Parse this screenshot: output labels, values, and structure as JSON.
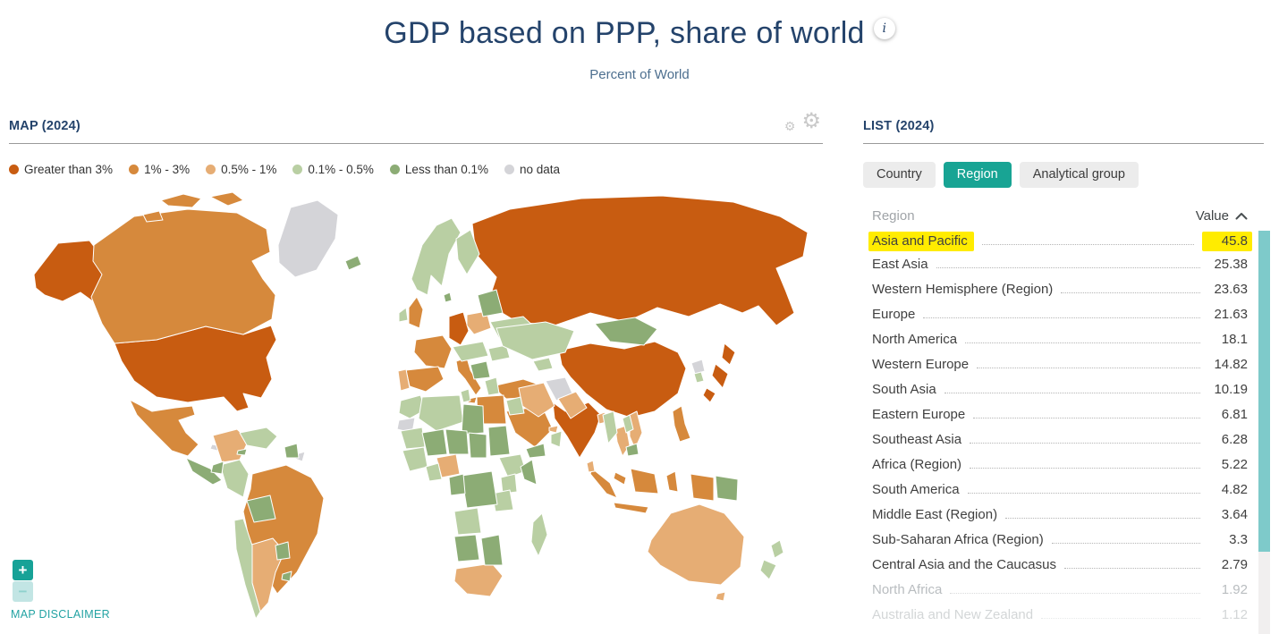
{
  "header": {
    "title": "GDP based on PPP, share of world",
    "subtitle": "Percent of World",
    "info_icon": "i"
  },
  "map_panel": {
    "title": "MAP (2024)",
    "legend": [
      {
        "label": "Greater than 3%",
        "category": "gt3"
      },
      {
        "label": "1% - 3%",
        "category": "p1_3"
      },
      {
        "label": "0.5% - 1%",
        "category": "p05_1"
      },
      {
        "label": "0.1% - 0.5%",
        "category": "p01_05"
      },
      {
        "label": "Less than 0.1%",
        "category": "lt01"
      },
      {
        "label": "no data",
        "category": "nodata"
      }
    ],
    "zoom_in_label": "+",
    "zoom_out_label": "−",
    "disclaimer": "MAP DISCLAIMER"
  },
  "map": {
    "palette": {
      "gt3": "#C85C11",
      "p1_3": "#D6893C",
      "p05_1": "#E6AD74",
      "p01_05": "#B9CFA3",
      "lt01": "#8CAC75",
      "nodata": "#D4D4D8"
    },
    "countries": {
      "greenland": "nodata",
      "cuba": "nodata",
      "western-sahara": "nodata",
      "syria": "nodata",
      "afghanistan": "nodata",
      "north-korea": "nodata",
      "french-guiana": "nodata",
      "alaska": "gt3",
      "usa": "gt3",
      "russia": "gt3",
      "china": "gt3",
      "india": "gt3",
      "japan": "gt3",
      "germany": "gt3",
      "canada": "p1_3",
      "canadian-islands": "p1_3",
      "mexico": "p1_3",
      "uk": "p1_3",
      "france": "p1_3",
      "spain": "p1_3",
      "italy": "p1_3",
      "turkey": "p1_3",
      "egypt": "p1_3",
      "saudi-arabia": "p1_3",
      "brazil": "p1_3",
      "indonesia": "p1_3",
      "philippines": "p1_3",
      "malaysia": "p1_3",
      "colombia": "p05_1",
      "argentina": "p05_1",
      "poland": "p05_1",
      "portugal": "p05_1",
      "nigeria": "p05_1",
      "south-africa": "p05_1",
      "australia": "p05_1",
      "iran": "p05_1",
      "pakistan": "p05_1",
      "bangladesh": "p05_1",
      "sri-lanka": "p05_1",
      "thailand": "p05_1",
      "vietnam": "p05_1",
      "uae": "p05_1",
      "ireland": "p01_05",
      "scandinavia": "p01_05",
      "finland": "p01_05",
      "ukraine": "p01_05",
      "romania": "p01_05",
      "greece": "p01_05",
      "central-europe": "p01_05",
      "kazakhstan": "p01_05",
      "uzbekistan": "p01_05",
      "morocco": "p01_05",
      "algeria": "p01_05",
      "tunisia": "p01_05",
      "mauritania": "p01_05",
      "ethiopia": "p01_05",
      "kenya": "p01_05",
      "tanzania": "p01_05",
      "angola": "p01_05",
      "madagascar": "p01_05",
      "new-zealand": "p01_05",
      "chile": "p01_05",
      "peru": "p01_05",
      "west-africa": "p01_05",
      "ghana": "p01_05",
      "south-korea": "p01_05",
      "venezuela": "p01_05",
      "myanmar": "p01_05",
      "laos": "p01_05",
      "iraq": "p01_05",
      "oman": "p01_05",
      "iceland": "lt01",
      "mongolia": "lt01",
      "libya": "lt01",
      "mali": "lt01",
      "niger": "lt01",
      "chad": "lt01",
      "sudan": "lt01",
      "drc": "lt01",
      "somalia": "lt01",
      "namibia-botswana": "lt01",
      "mozambique-zimbabwe": "lt01",
      "baltics-belarus": "lt01",
      "balkans": "lt01",
      "papua-new-guinea": "lt01",
      "central-america": "lt01",
      "bolivia": "lt01",
      "paraguay": "lt01",
      "uruguay": "lt01",
      "guyanas": "lt01",
      "ecuador": "lt01",
      "cameroon-gabon": "lt01",
      "hispaniola": "lt01",
      "cambodia": "lt01",
      "yemen": "lt01",
      "denmark": "lt01"
    }
  },
  "list_panel": {
    "title": "LIST (2024)",
    "tabs": [
      {
        "label": "Country",
        "active": false
      },
      {
        "label": "Region",
        "active": true
      },
      {
        "label": "Analytical group",
        "active": false
      }
    ],
    "columns": {
      "name": "Region",
      "value": "Value"
    },
    "rows": [
      {
        "name": "Asia and Pacific",
        "value": "45.8",
        "highlighted": true
      },
      {
        "name": "East Asia",
        "value": "25.38"
      },
      {
        "name": "Western Hemisphere (Region)",
        "value": "23.63"
      },
      {
        "name": "Europe",
        "value": "21.63"
      },
      {
        "name": "North America",
        "value": "18.1"
      },
      {
        "name": "Western Europe",
        "value": "14.82"
      },
      {
        "name": "South Asia",
        "value": "10.19"
      },
      {
        "name": "Eastern Europe",
        "value": "6.81"
      },
      {
        "name": "Southeast Asia",
        "value": "6.28"
      },
      {
        "name": "Africa (Region)",
        "value": "5.22"
      },
      {
        "name": "South America",
        "value": "4.82"
      },
      {
        "name": "Middle East (Region)",
        "value": "3.64"
      },
      {
        "name": "Sub-Saharan Africa (Region)",
        "value": "3.3"
      },
      {
        "name": "Central Asia and the Caucasus",
        "value": "2.79"
      },
      {
        "name": "North Africa",
        "value": "1.92",
        "muted": 1
      },
      {
        "name": "Australia and New Zealand",
        "value": "1.12",
        "muted": 2
      }
    ]
  },
  "chart_data": {
    "type": "table",
    "title": "GDP based on PPP, share of world (2024), Percent of World — by Region",
    "categories": [
      "Asia and Pacific",
      "East Asia",
      "Western Hemisphere (Region)",
      "Europe",
      "North America",
      "Western Europe",
      "South Asia",
      "Eastern Europe",
      "Southeast Asia",
      "Africa (Region)",
      "South America",
      "Middle East (Region)",
      "Sub-Saharan Africa (Region)",
      "Central Asia and the Caucasus",
      "North Africa",
      "Australia and New Zealand"
    ],
    "values": [
      45.8,
      25.38,
      23.63,
      21.63,
      18.1,
      14.82,
      10.19,
      6.81,
      6.28,
      5.22,
      4.82,
      3.64,
      3.3,
      2.79,
      1.92,
      1.12
    ],
    "map_legend_bins": [
      "Greater than 3%",
      "1% - 3%",
      "0.5% - 1%",
      "0.1% - 0.5%",
      "Less than 0.1%",
      "no data"
    ]
  }
}
